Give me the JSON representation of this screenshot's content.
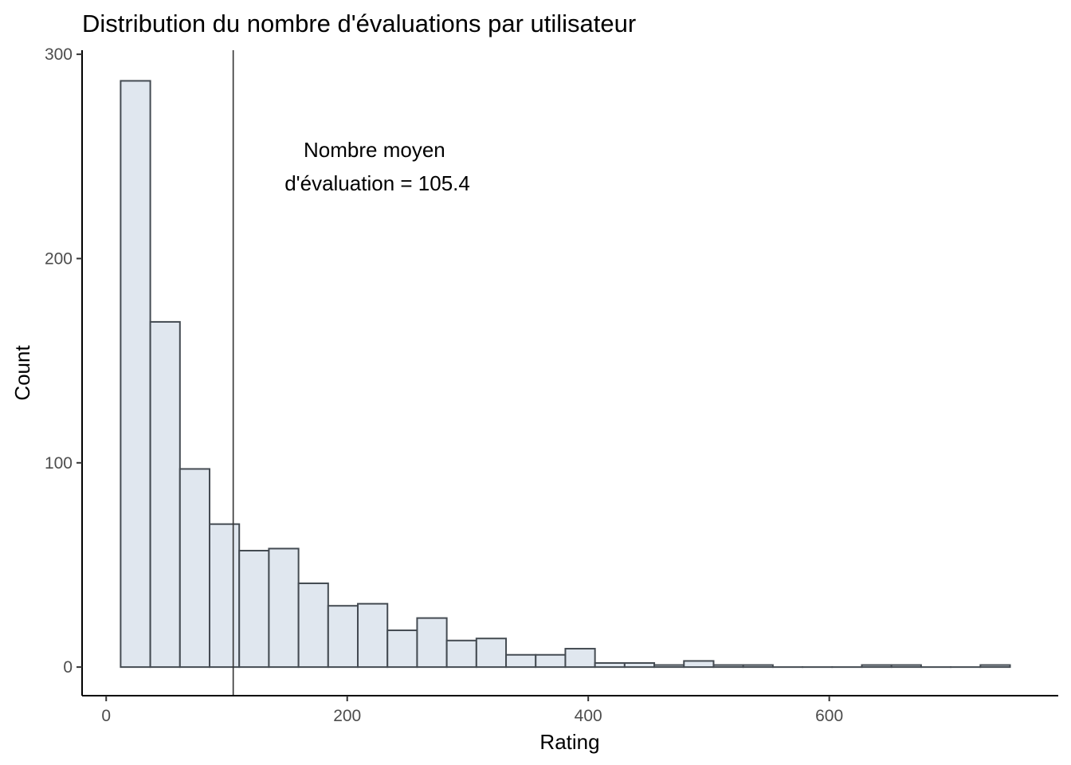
{
  "chart_data": {
    "type": "bar",
    "histogram": true,
    "title": "Distribution du nombre d'évaluations par utilisateur",
    "xlabel": "Rating",
    "ylabel": "Count",
    "xlim": [
      -20,
      790
    ],
    "ylim": [
      -14,
      302
    ],
    "x_ticks": [
      0,
      200,
      400,
      600
    ],
    "y_ticks": [
      0,
      100,
      200,
      300
    ],
    "bin_width": 24.6,
    "bin_starts": [
      12,
      36.6,
      61.2,
      85.8,
      110.4,
      135,
      159.6,
      184.2,
      208.8,
      233.4,
      258,
      282.6,
      307.2,
      331.8,
      356.4,
      381,
      405.6,
      430.2,
      454.8,
      479.4,
      504,
      528.6,
      553.2,
      577.8,
      602.4,
      627,
      651.6,
      676.2,
      700.8,
      725.4
    ],
    "values": [
      287,
      169,
      97,
      70,
      57,
      58,
      41,
      30,
      31,
      18,
      24,
      13,
      14,
      6,
      6,
      9,
      2,
      2,
      1,
      3,
      1,
      1,
      0,
      0,
      0,
      1,
      1,
      0,
      0,
      1
    ],
    "mean_line": {
      "x": 105.4,
      "label_line1": "Nombre moyen",
      "label_line2": "d'évaluation = 105.4",
      "label_x": 225,
      "label_y": 245
    },
    "grid": false,
    "legend": "none",
    "colors": {
      "bar_fill": "#e0e7ef",
      "bar_stroke": "#444b52",
      "axis": "#000000",
      "tick_label": "#4d4d4d"
    }
  }
}
